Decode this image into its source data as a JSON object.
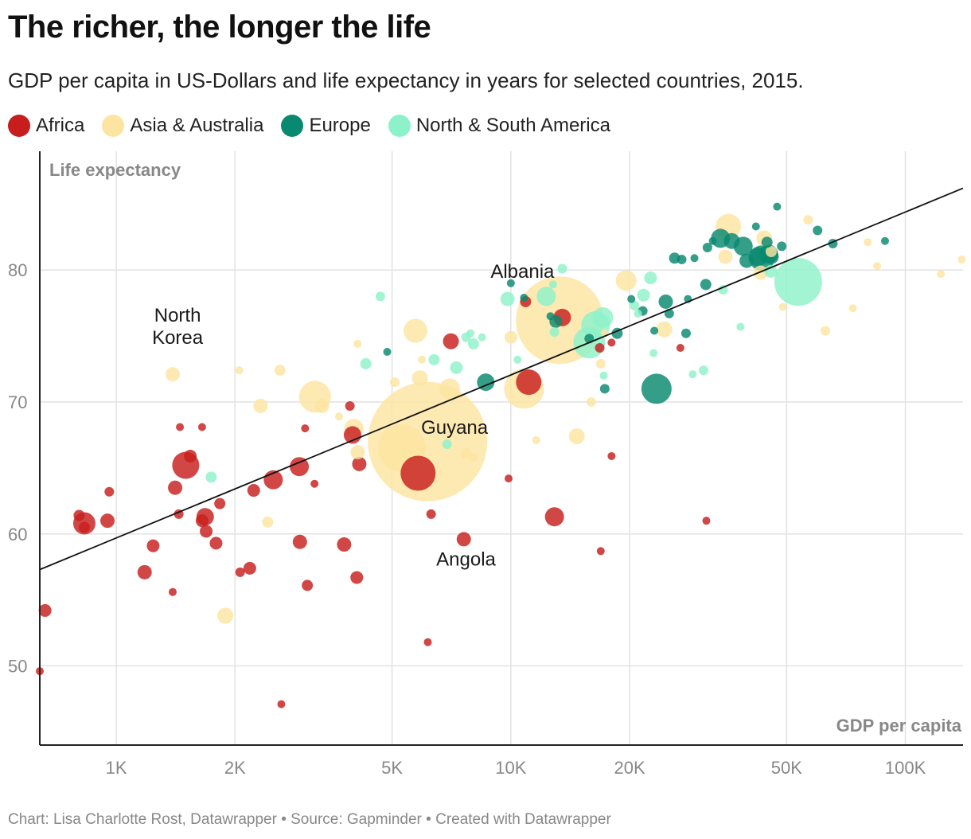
{
  "header": {
    "title": "The richer, the longer the life",
    "subtitle": "GDP per capita in US-Dollars and life expectancy in years for selected countries, 2015."
  },
  "legend": [
    {
      "name": "Africa",
      "color": "#c71e1d"
    },
    {
      "name": "Asia & Australia",
      "color": "#fde4a1"
    },
    {
      "name": "Europe",
      "color": "#09896f"
    },
    {
      "name": "North & South America",
      "color": "#8df1c9"
    }
  ],
  "footer": "Chart: Lisa Charlotte Rost, Datawrapper • Source: Gapminder • Created with Datawrapper",
  "chart_data": {
    "type": "scatter",
    "xlabel": "GDP per capita",
    "ylabel": "Life expectancy",
    "xscale": "log",
    "xlim": [
      640,
      140000
    ],
    "ylim": [
      44,
      89
    ],
    "grid": true,
    "xticks": [
      {
        "value": 1000,
        "label": "1K"
      },
      {
        "value": 2000,
        "label": "2K"
      },
      {
        "value": 5000,
        "label": "5K"
      },
      {
        "value": 10000,
        "label": "10K"
      },
      {
        "value": 20000,
        "label": "20K"
      },
      {
        "value": 50000,
        "label": "50K"
      },
      {
        "value": 100000,
        "label": "100K"
      }
    ],
    "yticks": [
      50,
      60,
      70,
      80
    ],
    "trendline": {
      "from": [
        640,
        57.3
      ],
      "to": [
        140000,
        86.2
      ]
    },
    "annotations": [
      {
        "text": "North",
        "x": 1430,
        "y": 76.1
      },
      {
        "text": "Korea",
        "x": 1430,
        "y": 74.4
      },
      {
        "text": "Albania",
        "x": 10700,
        "y": 79.4
      },
      {
        "text": "Guyana",
        "x": 7200,
        "y": 67.6
      },
      {
        "text": "Angola",
        "x": 7700,
        "y": 57.6
      }
    ],
    "series": [
      {
        "name": "Africa",
        "color": "#c71e1d",
        "points": [
          [
            640,
            49.6,
            5
          ],
          [
            660,
            54.2,
            8
          ],
          [
            805,
            61.4,
            7
          ],
          [
            830,
            60.8,
            14
          ],
          [
            830,
            60.5,
            7
          ],
          [
            950,
            61,
            9
          ],
          [
            960,
            63.2,
            6
          ],
          [
            1180,
            57.1,
            9
          ],
          [
            1240,
            59.1,
            8
          ],
          [
            1390,
            55.6,
            5
          ],
          [
            1440,
            61.5,
            6
          ],
          [
            1450,
            68.1,
            5
          ],
          [
            1500,
            65.2,
            17
          ],
          [
            1540,
            65.9,
            8
          ],
          [
            1410,
            63.5,
            9
          ],
          [
            1650,
            68.1,
            5
          ],
          [
            1650,
            61,
            8
          ],
          [
            1680,
            61.3,
            11
          ],
          [
            1690,
            60.2,
            8
          ],
          [
            1790,
            59.3,
            8
          ],
          [
            1830,
            62.3,
            7
          ],
          [
            2060,
            57.1,
            6
          ],
          [
            2180,
            57.4,
            8
          ],
          [
            2230,
            63.3,
            8
          ],
          [
            2500,
            64.1,
            12
          ],
          [
            2620,
            47.1,
            5
          ],
          [
            2910,
            65.1,
            12
          ],
          [
            2920,
            59.4,
            9
          ],
          [
            3010,
            68,
            5
          ],
          [
            3050,
            56.1,
            7
          ],
          [
            3180,
            63.8,
            5
          ],
          [
            3780,
            59.2,
            9
          ],
          [
            3910,
            69.7,
            6
          ],
          [
            3970,
            67.5,
            11
          ],
          [
            4070,
            56.7,
            8
          ],
          [
            4130,
            65.3,
            9
          ],
          [
            5820,
            64.6,
            22
          ],
          [
            6160,
            51.8,
            5
          ],
          [
            6280,
            61.5,
            6
          ],
          [
            7050,
            74.6,
            10
          ],
          [
            7600,
            59.6,
            9
          ],
          [
            9870,
            64.2,
            5
          ],
          [
            10900,
            77.6,
            7
          ],
          [
            11100,
            71.5,
            16
          ],
          [
            12900,
            61.3,
            12
          ],
          [
            13500,
            76.4,
            11
          ],
          [
            16800,
            74.1,
            6
          ],
          [
            16900,
            58.7,
            5
          ],
          [
            18000,
            74.5,
            5
          ],
          [
            18000,
            65.9,
            5
          ],
          [
            26900,
            74.1,
            5
          ],
          [
            31300,
            61,
            5
          ]
        ]
      },
      {
        "name": "Asia & Australia",
        "color": "#fde4a1",
        "points": [
          [
            1390,
            72.1,
            9
          ],
          [
            1890,
            53.8,
            10
          ],
          [
            2050,
            72.4,
            5
          ],
          [
            2320,
            69.7,
            9
          ],
          [
            2420,
            60.9,
            7
          ],
          [
            2600,
            72.4,
            7
          ],
          [
            3190,
            70.4,
            20
          ],
          [
            3320,
            69.7,
            9
          ],
          [
            3670,
            68.9,
            5
          ],
          [
            4000,
            68,
            12
          ],
          [
            4090,
            66.2,
            9
          ],
          [
            4090,
            74.4,
            5
          ],
          [
            5080,
            71.5,
            6
          ],
          [
            5300,
            66.5,
            30
          ],
          [
            5730,
            75.4,
            15
          ],
          [
            5880,
            71.8,
            10
          ],
          [
            5950,
            73.2,
            5
          ],
          [
            6150,
            67,
            75
          ],
          [
            7000,
            71,
            13
          ],
          [
            7700,
            66.1,
            7
          ],
          [
            8030,
            65.8,
            5
          ],
          [
            10000,
            74.9,
            8
          ],
          [
            10800,
            71,
            25
          ],
          [
            11600,
            67.1,
            5
          ],
          [
            13300,
            76.2,
            55
          ],
          [
            14700,
            67.4,
            10
          ],
          [
            16000,
            70,
            6
          ],
          [
            16900,
            72.9,
            6
          ],
          [
            17300,
            75.2,
            5
          ],
          [
            19600,
            79.2,
            13
          ],
          [
            24500,
            75.5,
            10
          ],
          [
            35000,
            81,
            9
          ],
          [
            35600,
            83.3,
            16
          ],
          [
            43000,
            79.8,
            9
          ],
          [
            43900,
            82.4,
            10
          ],
          [
            45700,
            81.4,
            7
          ],
          [
            48900,
            77.2,
            5
          ],
          [
            56700,
            83.8,
            6
          ],
          [
            62700,
            75.4,
            6
          ],
          [
            73600,
            77.1,
            5
          ],
          [
            80300,
            82.1,
            5
          ],
          [
            84800,
            80.3,
            5
          ],
          [
            123000,
            79.7,
            5
          ],
          [
            139000,
            80.8,
            5
          ]
        ]
      },
      {
        "name": "Europe",
        "color": "#09896f",
        "points": [
          [
            4860,
            73.8,
            5
          ],
          [
            8640,
            71.5,
            11
          ],
          [
            10000,
            79,
            5
          ],
          [
            10800,
            77.9,
            5
          ],
          [
            12600,
            76.5,
            5
          ],
          [
            13000,
            76.1,
            8
          ],
          [
            15800,
            74.8,
            6
          ],
          [
            17300,
            71,
            6
          ],
          [
            18600,
            75.2,
            7
          ],
          [
            20200,
            77.8,
            5
          ],
          [
            21600,
            76.9,
            6
          ],
          [
            23100,
            75.4,
            5
          ],
          [
            23400,
            71,
            19
          ],
          [
            24700,
            77.6,
            9
          ],
          [
            25200,
            76.7,
            6
          ],
          [
            26000,
            80.9,
            7
          ],
          [
            27100,
            80.8,
            6
          ],
          [
            27800,
            75.2,
            6
          ],
          [
            28100,
            77.8,
            5
          ],
          [
            29200,
            80.9,
            5
          ],
          [
            31200,
            78.9,
            7
          ],
          [
            31500,
            81.7,
            6
          ],
          [
            32500,
            82.2,
            5
          ],
          [
            34000,
            82.4,
            12
          ],
          [
            36300,
            82.2,
            10
          ],
          [
            38800,
            81.8,
            12
          ],
          [
            39600,
            80.7,
            9
          ],
          [
            41800,
            83.3,
            5
          ],
          [
            42300,
            81,
            12
          ],
          [
            43300,
            80.9,
            16
          ],
          [
            44600,
            82.1,
            7
          ],
          [
            45000,
            81.2,
            12
          ],
          [
            45800,
            81,
            9
          ],
          [
            47300,
            84.8,
            5
          ],
          [
            48600,
            81.8,
            6
          ],
          [
            59900,
            83,
            6
          ],
          [
            65500,
            82,
            6
          ],
          [
            88800,
            82.2,
            5
          ]
        ]
      },
      {
        "name": "North & South America",
        "color": "#8df1c9",
        "points": [
          [
            1740,
            64.3,
            7
          ],
          [
            4670,
            78,
            6
          ],
          [
            4290,
            72.9,
            7
          ],
          [
            6390,
            73.2,
            7
          ],
          [
            6890,
            66.8,
            6
          ],
          [
            7280,
            72.6,
            8
          ],
          [
            7700,
            74.9,
            6
          ],
          [
            7900,
            75.2,
            5
          ],
          [
            8040,
            74.4,
            7
          ],
          [
            8450,
            74.9,
            5
          ],
          [
            9810,
            77.8,
            9
          ],
          [
            10400,
            73.2,
            5
          ],
          [
            12300,
            78,
            12
          ],
          [
            12800,
            78.9,
            5
          ],
          [
            12900,
            75.3,
            6
          ],
          [
            13500,
            80.1,
            6
          ],
          [
            15800,
            74.5,
            20
          ],
          [
            16400,
            75.8,
            18
          ],
          [
            17100,
            76.4,
            13
          ],
          [
            17200,
            72,
            5
          ],
          [
            20600,
            77.3,
            6
          ],
          [
            21000,
            76.7,
            5
          ],
          [
            21700,
            78.1,
            8
          ],
          [
            22600,
            79.4,
            8
          ],
          [
            23000,
            73.7,
            5
          ],
          [
            28900,
            72.1,
            5
          ],
          [
            30800,
            72.4,
            6
          ],
          [
            34500,
            78.5,
            6
          ],
          [
            38200,
            75.7,
            5
          ],
          [
            45600,
            79.9,
            8
          ],
          [
            53500,
            79.1,
            30
          ]
        ]
      }
    ]
  }
}
